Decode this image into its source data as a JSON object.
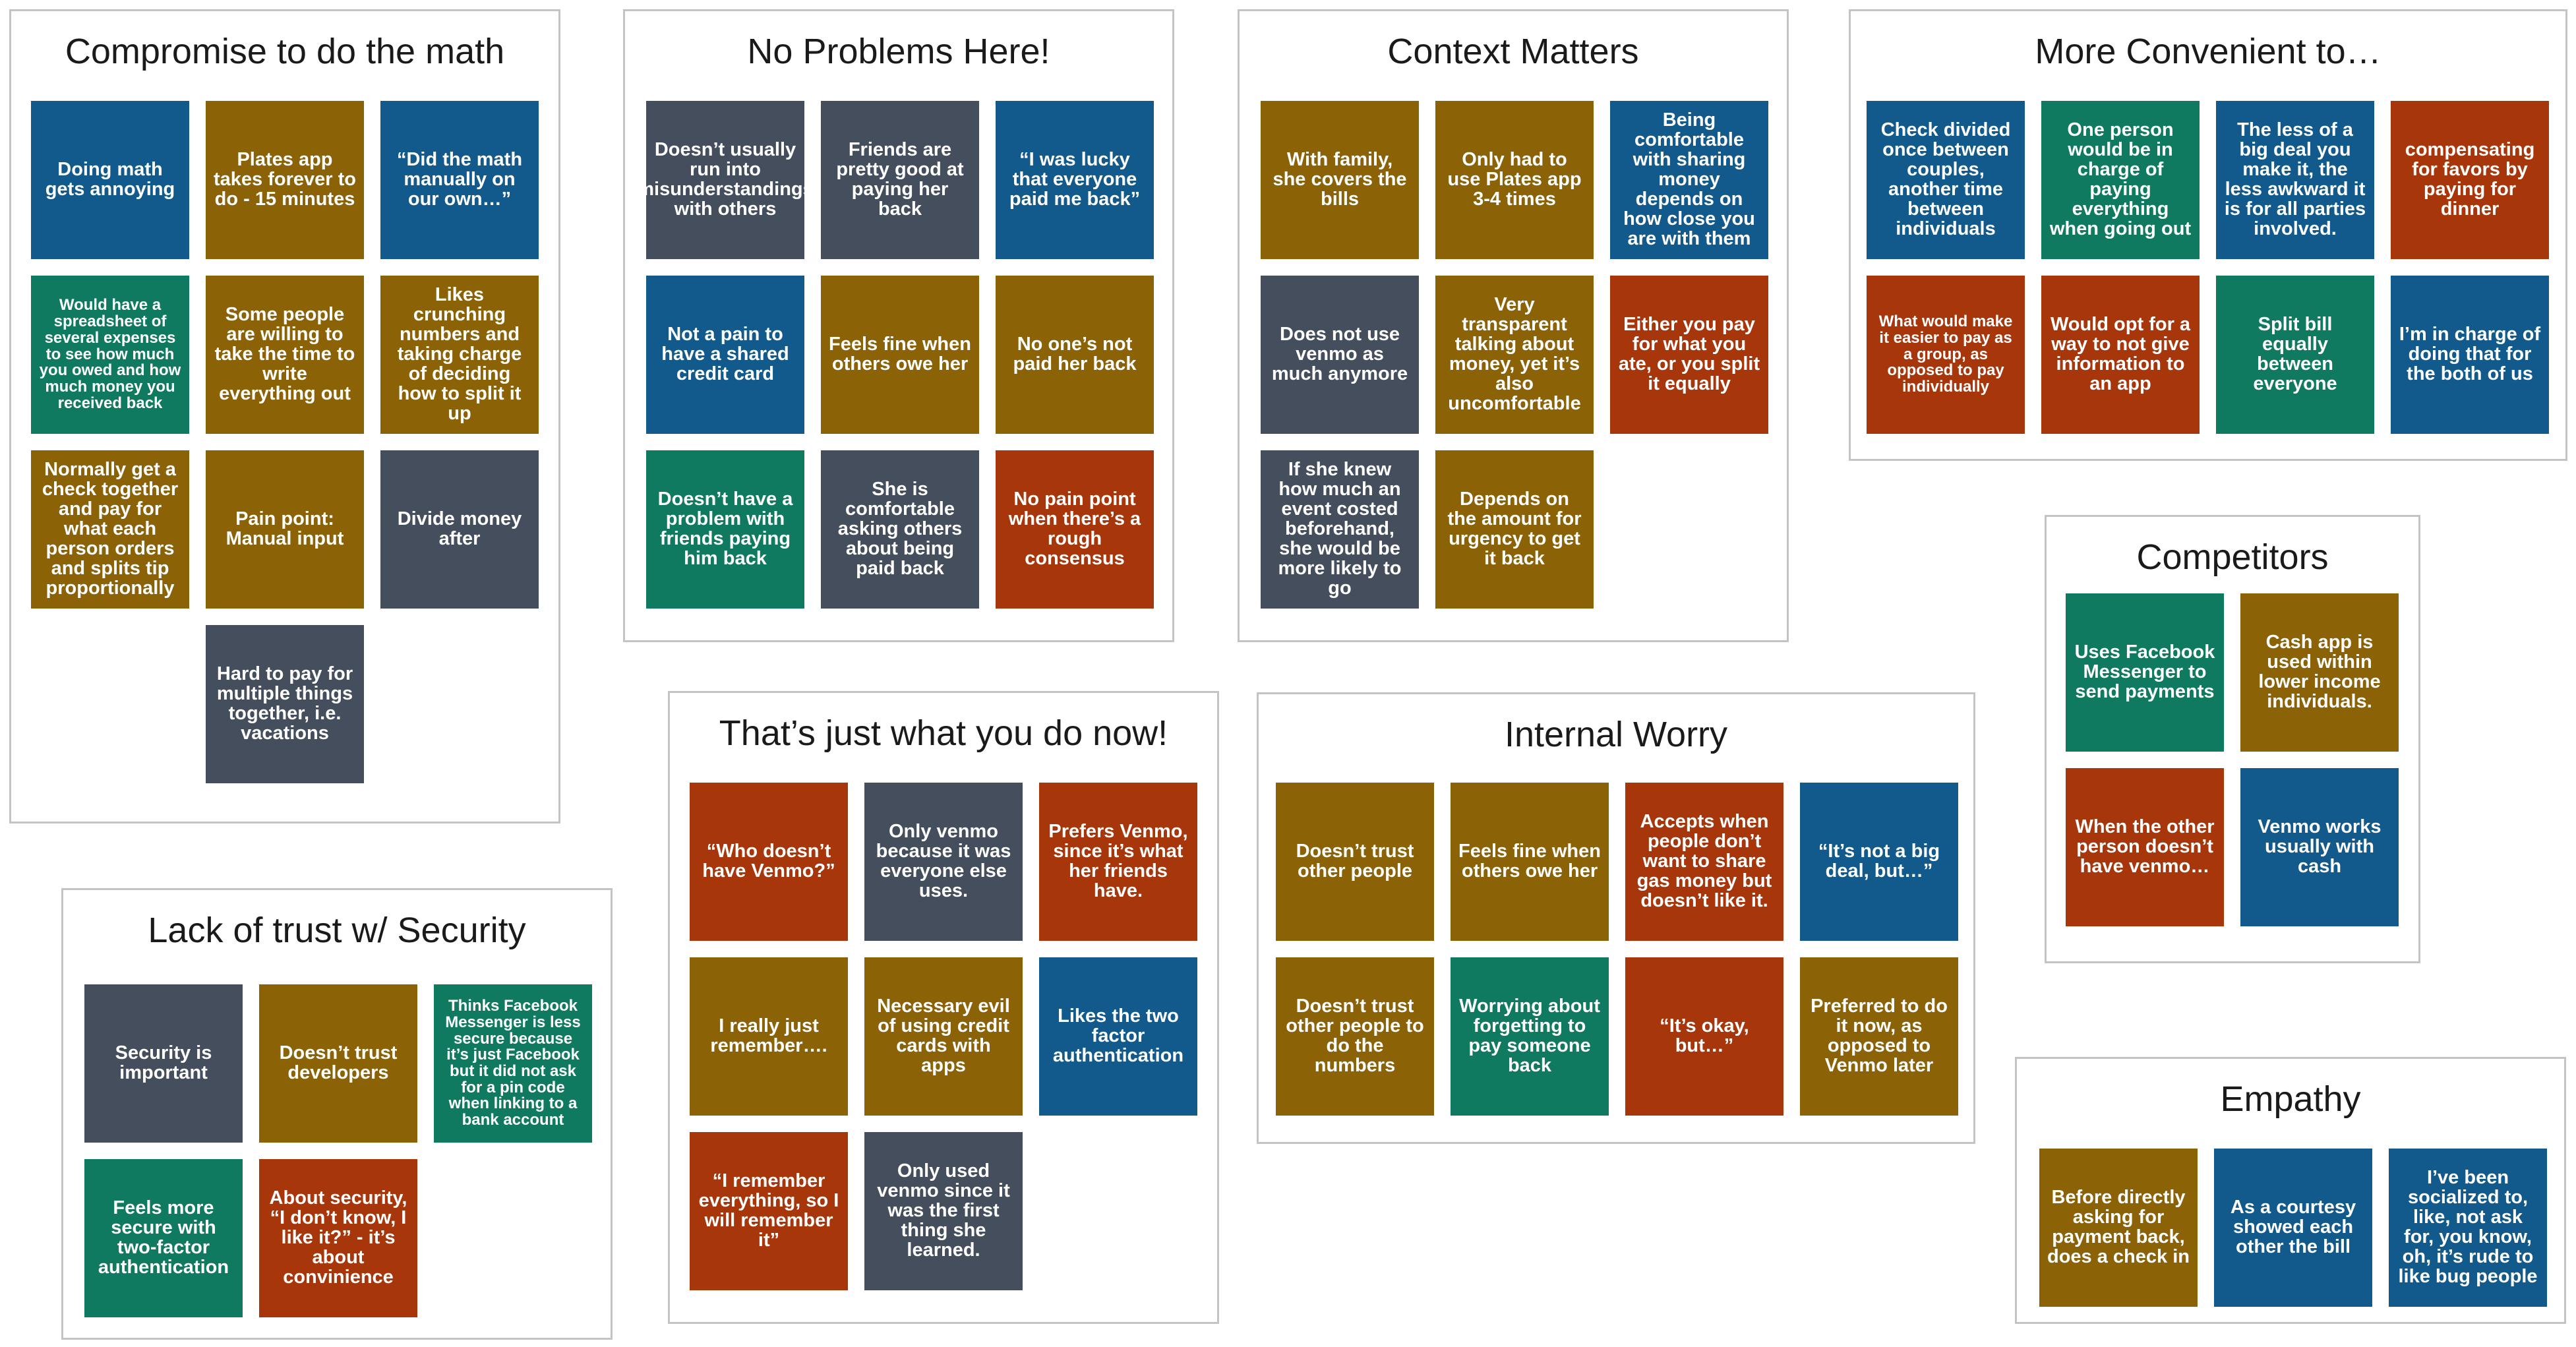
{
  "colors": {
    "blue": "#125a8c",
    "gold": "#8c6206",
    "slate": "#444e5d",
    "green": "#0f7a60",
    "red": "#a8360b"
  },
  "groups": {
    "compromise": {
      "title": "Compromise to do the math",
      "notes": [
        "Doing math gets annoying",
        "Plates app takes forever to do - 15 minutes",
        "“Did the math manually on our own…”",
        "Would have a spreadsheet of several expenses to see how much you owed and how much money you received back",
        "Some people are willing to take the time to write everything out",
        "Likes crunching numbers and taking charge of deciding how to split it up",
        "Normally get a check together and pay for what each person orders and splits tip proportionally",
        "Pain point: Manual input",
        "Divide money after",
        "Hard to pay for multiple things together, i.e. vacations"
      ]
    },
    "no_problems": {
      "title": "No Problems Here!",
      "notes": [
        "Doesn’t usually run into misunderstandings with others",
        "Friends are pretty good at paying her back",
        "“I was lucky that everyone paid me back”",
        "Not a pain to have a shared credit card",
        "Feels fine when others owe her",
        "No one’s not paid her back",
        "Doesn’t have a problem with friends paying him back",
        "She is comfortable asking others about being paid back",
        "No pain point when there’s a rough consensus"
      ]
    },
    "context": {
      "title": "Context Matters",
      "notes": [
        "With family, she covers the bills",
        "Only had to use Plates app 3-4 times",
        "Being comfortable with sharing money depends on how close you are with them",
        "Does not use venmo as much anymore",
        "Very transparent talking about money, yet it’s also uncomfortable",
        "Either you pay for what you ate, or you split it equally",
        "If she knew how much an event costed beforehand, she would be more likely to go",
        "Depends on the amount for urgency to get it back"
      ]
    },
    "convenient": {
      "title": "More Convenient to…",
      "notes": [
        "Check divided once between couples, another time between individuals",
        "One person would be in charge of paying everything when going out",
        "The less of a big deal you make it, the less awkward it is for all parties involved.",
        "compensating for favors by paying for dinner",
        "What would make it easier to pay as a group, as opposed to pay individually",
        "Would opt for a way to not give information to an app",
        "Split bill equally between everyone",
        "I’m in charge of doing that for the both of us"
      ]
    },
    "competitors": {
      "title": "Competitors",
      "notes": [
        "Uses Facebook Messenger to send payments",
        "Cash app is used within lower income individuals.",
        "When the other person doesn’t have venmo…",
        "Venmo works usually with cash"
      ]
    },
    "just_do": {
      "title": "That’s just what you do now!",
      "notes": [
        "“Who doesn’t have Venmo?”",
        "Only venmo because it was everyone else uses.",
        "Prefers Venmo, since it’s what her friends have.",
        "I really just remember….",
        "Necessary evil of using credit cards with apps",
        "Likes the two factor authentication",
        "“I remember everything, so I will remember it”",
        "Only used venmo since it was the first thing she learned."
      ]
    },
    "worry": {
      "title": "Internal Worry",
      "notes": [
        "Doesn’t trust other people",
        "Feels fine when others owe her",
        "Accepts when people don’t want to share gas money but doesn’t like it.",
        "“It’s not a big deal, but…”",
        "Doesn’t trust other people to do the numbers",
        "Worrying about forgetting to pay someone back",
        "“It’s okay, but…”",
        "Preferred to do it now, as opposed to Venmo later"
      ]
    },
    "empathy": {
      "title": "Empathy",
      "notes": [
        "Before directly asking for payment back, does a check in",
        "As a courtesy showed each other the bill",
        "I’ve been socialized to, like, not ask for, you know, oh, it’s rude to like bug people"
      ]
    },
    "security": {
      "title": "Lack of trust w/ Security",
      "notes": [
        "Security is important",
        "Doesn’t trust developers",
        "Thinks Facebook Messenger is less secure because it’s just Facebook but it did not ask for a pin code when linking to a bank account",
        "Feels more secure with two-factor authentication",
        "About security, “I don’t know, I like it?” - it’s about convinience"
      ]
    }
  }
}
